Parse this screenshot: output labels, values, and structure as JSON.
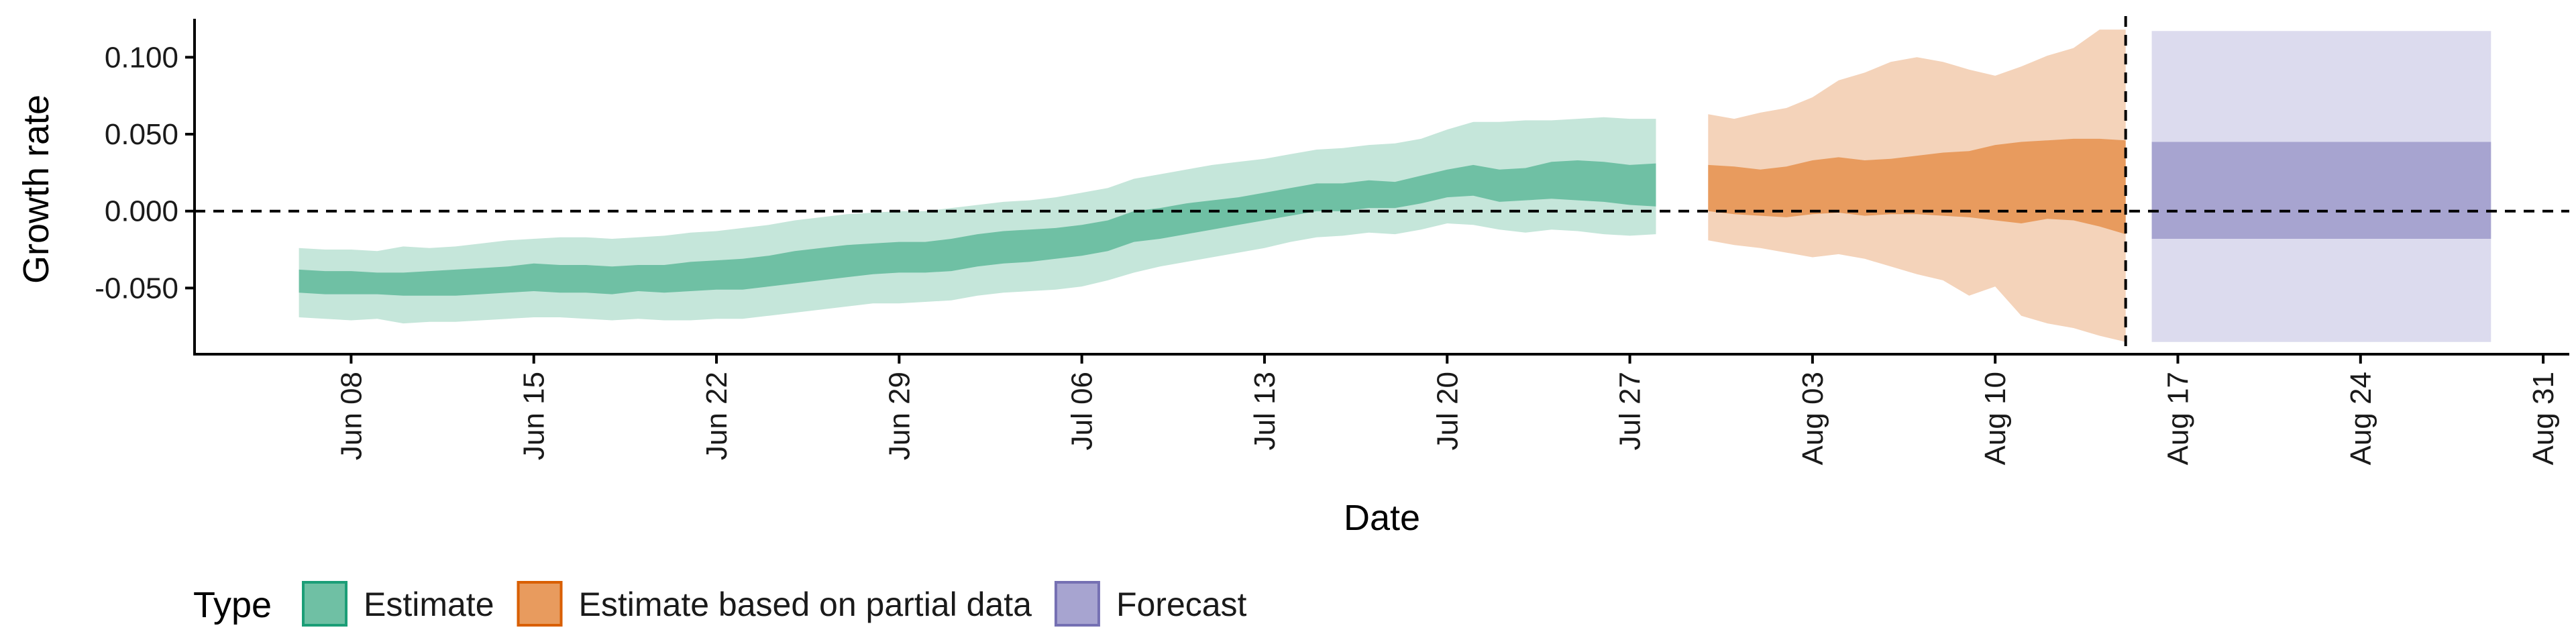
{
  "chart_data": {
    "type": "area",
    "xlabel": "Date",
    "ylabel": "Growth rate",
    "x_axis": {
      "start": "2020-06-01",
      "range": [
        "2020-06-02",
        "2020-09-01"
      ],
      "ticks": [
        {
          "date": "2020-06-08",
          "label": "Jun 08"
        },
        {
          "date": "2020-06-15",
          "label": "Jun 15"
        },
        {
          "date": "2020-06-22",
          "label": "Jun 22"
        },
        {
          "date": "2020-06-29",
          "label": "Jun 29"
        },
        {
          "date": "2020-07-06",
          "label": "Jul 06"
        },
        {
          "date": "2020-07-13",
          "label": "Jul 13"
        },
        {
          "date": "2020-07-20",
          "label": "Jul 20"
        },
        {
          "date": "2020-07-27",
          "label": "Jul 27"
        },
        {
          "date": "2020-08-03",
          "label": "Aug 03"
        },
        {
          "date": "2020-08-10",
          "label": "Aug 10"
        },
        {
          "date": "2020-08-17",
          "label": "Aug 17"
        },
        {
          "date": "2020-08-24",
          "label": "Aug 24"
        },
        {
          "date": "2020-08-31",
          "label": "Aug 31"
        }
      ]
    },
    "y_axis": {
      "range": [
        -0.093,
        0.125
      ],
      "ticks": [
        {
          "value": 0.1,
          "label": "0.100"
        },
        {
          "value": 0.05,
          "label": "0.050"
        },
        {
          "value": 0.0,
          "label": "0.000"
        },
        {
          "value": -0.05,
          "label": "-0.050"
        }
      ]
    },
    "reference_lines": {
      "horizontal_y": 0.0,
      "vertical_x": "2020-08-15",
      "style": "dashed"
    },
    "legend": {
      "title": "Type",
      "placement": "bottom-left",
      "items": [
        {
          "label": "Estimate",
          "fill": "#6fc0a4",
          "stroke": "#1b9e77"
        },
        {
          "label": "Estimate based on partial data",
          "fill": "#e89b5e",
          "stroke": "#d95f02"
        },
        {
          "label": "Forecast",
          "fill": "#a7a4d0",
          "stroke": "#7570b3"
        }
      ]
    },
    "series": [
      {
        "name": "Estimate",
        "color_outer": "#c5e6da",
        "color_inner": "#6fc0a4",
        "points": [
          {
            "x": "2020-06-06",
            "lo90": -0.069,
            "lo50": -0.053,
            "hi50": -0.038,
            "hi90": -0.024
          },
          {
            "x": "2020-06-07",
            "lo90": -0.07,
            "lo50": -0.054,
            "hi50": -0.039,
            "hi90": -0.025
          },
          {
            "x": "2020-06-08",
            "lo90": -0.071,
            "lo50": -0.054,
            "hi50": -0.039,
            "hi90": -0.025
          },
          {
            "x": "2020-06-09",
            "lo90": -0.07,
            "lo50": -0.054,
            "hi50": -0.04,
            "hi90": -0.026
          },
          {
            "x": "2020-06-10",
            "lo90": -0.073,
            "lo50": -0.055,
            "hi50": -0.04,
            "hi90": -0.023
          },
          {
            "x": "2020-06-11",
            "lo90": -0.072,
            "lo50": -0.055,
            "hi50": -0.039,
            "hi90": -0.024
          },
          {
            "x": "2020-06-12",
            "lo90": -0.072,
            "lo50": -0.055,
            "hi50": -0.038,
            "hi90": -0.023
          },
          {
            "x": "2020-06-13",
            "lo90": -0.071,
            "lo50": -0.054,
            "hi50": -0.037,
            "hi90": -0.021
          },
          {
            "x": "2020-06-14",
            "lo90": -0.07,
            "lo50": -0.053,
            "hi50": -0.036,
            "hi90": -0.019
          },
          {
            "x": "2020-06-15",
            "lo90": -0.069,
            "lo50": -0.052,
            "hi50": -0.034,
            "hi90": -0.018
          },
          {
            "x": "2020-06-16",
            "lo90": -0.069,
            "lo50": -0.053,
            "hi50": -0.035,
            "hi90": -0.017
          },
          {
            "x": "2020-06-17",
            "lo90": -0.07,
            "lo50": -0.053,
            "hi50": -0.035,
            "hi90": -0.017
          },
          {
            "x": "2020-06-18",
            "lo90": -0.071,
            "lo50": -0.054,
            "hi50": -0.036,
            "hi90": -0.018
          },
          {
            "x": "2020-06-19",
            "lo90": -0.07,
            "lo50": -0.052,
            "hi50": -0.035,
            "hi90": -0.017
          },
          {
            "x": "2020-06-20",
            "lo90": -0.071,
            "lo50": -0.053,
            "hi50": -0.035,
            "hi90": -0.016
          },
          {
            "x": "2020-06-21",
            "lo90": -0.071,
            "lo50": -0.052,
            "hi50": -0.033,
            "hi90": -0.014
          },
          {
            "x": "2020-06-22",
            "lo90": -0.07,
            "lo50": -0.051,
            "hi50": -0.032,
            "hi90": -0.013
          },
          {
            "x": "2020-06-23",
            "lo90": -0.07,
            "lo50": -0.051,
            "hi50": -0.031,
            "hi90": -0.011
          },
          {
            "x": "2020-06-24",
            "lo90": -0.068,
            "lo50": -0.049,
            "hi50": -0.029,
            "hi90": -0.009
          },
          {
            "x": "2020-06-25",
            "lo90": -0.066,
            "lo50": -0.047,
            "hi50": -0.026,
            "hi90": -0.006
          },
          {
            "x": "2020-06-26",
            "lo90": -0.064,
            "lo50": -0.045,
            "hi50": -0.024,
            "hi90": -0.004
          },
          {
            "x": "2020-06-27",
            "lo90": -0.062,
            "lo50": -0.043,
            "hi50": -0.022,
            "hi90": -0.002
          },
          {
            "x": "2020-06-28",
            "lo90": -0.06,
            "lo50": -0.041,
            "hi50": -0.021,
            "hi90": -0.001
          },
          {
            "x": "2020-06-29",
            "lo90": -0.06,
            "lo50": -0.04,
            "hi50": -0.02,
            "hi90": 0.0
          },
          {
            "x": "2020-06-30",
            "lo90": -0.059,
            "lo50": -0.04,
            "hi50": -0.02,
            "hi90": 0.0
          },
          {
            "x": "2020-07-01",
            "lo90": -0.058,
            "lo50": -0.039,
            "hi50": -0.018,
            "hi90": 0.002
          },
          {
            "x": "2020-07-02",
            "lo90": -0.055,
            "lo50": -0.036,
            "hi50": -0.015,
            "hi90": 0.004
          },
          {
            "x": "2020-07-03",
            "lo90": -0.053,
            "lo50": -0.034,
            "hi50": -0.013,
            "hi90": 0.006
          },
          {
            "x": "2020-07-04",
            "lo90": -0.052,
            "lo50": -0.033,
            "hi50": -0.012,
            "hi90": 0.007
          },
          {
            "x": "2020-07-05",
            "lo90": -0.051,
            "lo50": -0.031,
            "hi50": -0.011,
            "hi90": 0.009
          },
          {
            "x": "2020-07-06",
            "lo90": -0.049,
            "lo50": -0.029,
            "hi50": -0.009,
            "hi90": 0.012
          },
          {
            "x": "2020-07-07",
            "lo90": -0.045,
            "lo50": -0.026,
            "hi50": -0.006,
            "hi90": 0.015
          },
          {
            "x": "2020-07-08",
            "lo90": -0.04,
            "lo50": -0.02,
            "hi50": 0.0,
            "hi90": 0.021
          },
          {
            "x": "2020-07-09",
            "lo90": -0.036,
            "lo50": -0.018,
            "hi50": 0.002,
            "hi90": 0.024
          },
          {
            "x": "2020-07-10",
            "lo90": -0.033,
            "lo50": -0.015,
            "hi50": 0.005,
            "hi90": 0.027
          },
          {
            "x": "2020-07-11",
            "lo90": -0.03,
            "lo50": -0.012,
            "hi50": 0.007,
            "hi90": 0.03
          },
          {
            "x": "2020-07-12",
            "lo90": -0.027,
            "lo50": -0.009,
            "hi50": 0.009,
            "hi90": 0.032
          },
          {
            "x": "2020-07-13",
            "lo90": -0.024,
            "lo50": -0.006,
            "hi50": 0.012,
            "hi90": 0.034
          },
          {
            "x": "2020-07-14",
            "lo90": -0.02,
            "lo50": -0.003,
            "hi50": 0.015,
            "hi90": 0.037
          },
          {
            "x": "2020-07-15",
            "lo90": -0.017,
            "lo50": 0.0,
            "hi50": 0.018,
            "hi90": 0.04
          },
          {
            "x": "2020-07-16",
            "lo90": -0.016,
            "lo50": 0.0,
            "hi50": 0.018,
            "hi90": 0.041
          },
          {
            "x": "2020-07-17",
            "lo90": -0.014,
            "lo50": 0.002,
            "hi50": 0.02,
            "hi90": 0.043
          },
          {
            "x": "2020-07-18",
            "lo90": -0.015,
            "lo50": 0.002,
            "hi50": 0.019,
            "hi90": 0.044
          },
          {
            "x": "2020-07-19",
            "lo90": -0.012,
            "lo50": 0.005,
            "hi50": 0.023,
            "hi90": 0.047
          },
          {
            "x": "2020-07-20",
            "lo90": -0.008,
            "lo50": 0.009,
            "hi50": 0.027,
            "hi90": 0.053
          },
          {
            "x": "2020-07-21",
            "lo90": -0.009,
            "lo50": 0.01,
            "hi50": 0.03,
            "hi90": 0.058
          },
          {
            "x": "2020-07-22",
            "lo90": -0.012,
            "lo50": 0.006,
            "hi50": 0.027,
            "hi90": 0.058
          },
          {
            "x": "2020-07-23",
            "lo90": -0.014,
            "lo50": 0.007,
            "hi50": 0.028,
            "hi90": 0.059
          },
          {
            "x": "2020-07-24",
            "lo90": -0.012,
            "lo50": 0.008,
            "hi50": 0.032,
            "hi90": 0.059
          },
          {
            "x": "2020-07-25",
            "lo90": -0.013,
            "lo50": 0.007,
            "hi50": 0.033,
            "hi90": 0.06
          },
          {
            "x": "2020-07-26",
            "lo90": -0.015,
            "lo50": 0.006,
            "hi50": 0.032,
            "hi90": 0.061
          },
          {
            "x": "2020-07-27",
            "lo90": -0.016,
            "lo50": 0.004,
            "hi50": 0.03,
            "hi90": 0.06
          },
          {
            "x": "2020-07-28",
            "lo90": -0.015,
            "lo50": 0.003,
            "hi50": 0.031,
            "hi90": 0.06
          }
        ]
      },
      {
        "name": "Estimate based on partial data",
        "color_outer": "#f4d3ba",
        "color_inner": "#e89b5e",
        "points": [
          {
            "x": "2020-07-30",
            "lo90": -0.019,
            "lo50": 0.0,
            "hi50": 0.03,
            "hi90": 0.063
          },
          {
            "x": "2020-07-31",
            "lo90": -0.022,
            "lo50": -0.002,
            "hi50": 0.029,
            "hi90": 0.06
          },
          {
            "x": "2020-08-01",
            "lo90": -0.024,
            "lo50": -0.003,
            "hi50": 0.027,
            "hi90": 0.064
          },
          {
            "x": "2020-08-02",
            "lo90": -0.027,
            "lo50": -0.004,
            "hi50": 0.029,
            "hi90": 0.067
          },
          {
            "x": "2020-08-03",
            "lo90": -0.03,
            "lo50": -0.002,
            "hi50": 0.033,
            "hi90": 0.074
          },
          {
            "x": "2020-08-04",
            "lo90": -0.028,
            "lo50": -0.001,
            "hi50": 0.035,
            "hi90": 0.085
          },
          {
            "x": "2020-08-05",
            "lo90": -0.031,
            "lo50": -0.003,
            "hi50": 0.033,
            "hi90": 0.09
          },
          {
            "x": "2020-08-06",
            "lo90": -0.036,
            "lo50": -0.002,
            "hi50": 0.034,
            "hi90": 0.097
          },
          {
            "x": "2020-08-07",
            "lo90": -0.041,
            "lo50": -0.002,
            "hi50": 0.036,
            "hi90": 0.1
          },
          {
            "x": "2020-08-08",
            "lo90": -0.045,
            "lo50": -0.003,
            "hi50": 0.038,
            "hi90": 0.097
          },
          {
            "x": "2020-08-09",
            "lo90": -0.055,
            "lo50": -0.004,
            "hi50": 0.039,
            "hi90": 0.092
          },
          {
            "x": "2020-08-10",
            "lo90": -0.049,
            "lo50": -0.006,
            "hi50": 0.043,
            "hi90": 0.088
          },
          {
            "x": "2020-08-11",
            "lo90": -0.068,
            "lo50": -0.008,
            "hi50": 0.045,
            "hi90": 0.094
          },
          {
            "x": "2020-08-12",
            "lo90": -0.073,
            "lo50": -0.005,
            "hi50": 0.046,
            "hi90": 0.101
          },
          {
            "x": "2020-08-13",
            "lo90": -0.076,
            "lo50": -0.006,
            "hi50": 0.047,
            "hi90": 0.106
          },
          {
            "x": "2020-08-14",
            "lo90": -0.081,
            "lo50": -0.01,
            "hi50": 0.047,
            "hi90": 0.118
          },
          {
            "x": "2020-08-15",
            "lo90": -0.085,
            "lo50": -0.015,
            "hi50": 0.046,
            "hi90": 0.118
          }
        ]
      },
      {
        "name": "Forecast",
        "color_outer": "#dcdbee",
        "color_inner": "#a7a4d0",
        "points": [
          {
            "x": "2020-08-16",
            "lo90": -0.085,
            "lo50": -0.018,
            "hi50": 0.045,
            "hi90": 0.117
          },
          {
            "x": "2020-08-29",
            "lo90": -0.085,
            "lo50": -0.018,
            "hi50": 0.045,
            "hi90": 0.117
          }
        ]
      }
    ]
  }
}
